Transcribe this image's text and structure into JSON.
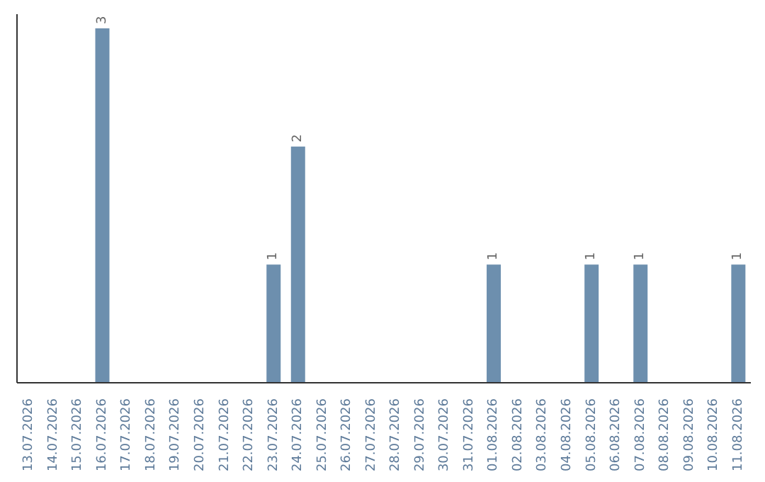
{
  "chart_data": {
    "type": "bar",
    "categories": [
      "13.07.2026",
      "14.07.2026",
      "15.07.2026",
      "16.07.2026",
      "17.07.2026",
      "18.07.2026",
      "19.07.2026",
      "20.07.2026",
      "21.07.2026",
      "22.07.2026",
      "23.07.2026",
      "24.07.2026",
      "25.07.2026",
      "26.07.2026",
      "27.07.2026",
      "28.07.2026",
      "29.07.2026",
      "30.07.2026",
      "31.07.2026",
      "01.08.2026",
      "02.08.2026",
      "03.08.2026",
      "04.08.2026",
      "05.08.2026",
      "06.08.2026",
      "07.08.2026",
      "08.08.2026",
      "09.08.2026",
      "10.08.2026",
      "11.08.2026"
    ],
    "values": [
      0,
      0,
      0,
      3,
      0,
      0,
      0,
      0,
      0,
      0,
      1,
      2,
      0,
      0,
      0,
      0,
      0,
      0,
      0,
      1,
      0,
      0,
      0,
      1,
      0,
      1,
      0,
      0,
      0,
      1
    ],
    "value_labels": [
      null,
      null,
      null,
      "3",
      null,
      null,
      null,
      null,
      null,
      null,
      "1",
      "2",
      null,
      null,
      null,
      null,
      null,
      null,
      null,
      "1",
      null,
      null,
      null,
      "1",
      null,
      "1",
      null,
      null,
      null,
      "1"
    ],
    "color": "#6d8fae"
  }
}
